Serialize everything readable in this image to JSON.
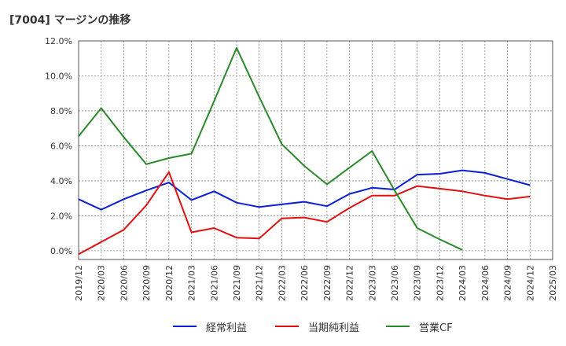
{
  "chart_title": "[7004]  マージンの推移",
  "chart_data": {
    "type": "line",
    "title": "[7004]  マージンの推移",
    "ylim": [
      -0.5,
      12.0
    ],
    "yticks": [
      "12.0%",
      "10.0%",
      "8.0%",
      "6.0%",
      "4.0%",
      "2.0%",
      "0.0%"
    ],
    "ytick_values": [
      12,
      10,
      8,
      6,
      4,
      2,
      0
    ],
    "categories": [
      "2019/12",
      "2020/03",
      "2020/06",
      "2020/09",
      "2020/12",
      "2021/03",
      "2021/06",
      "2021/09",
      "2021/12",
      "2022/03",
      "2022/06",
      "2022/09",
      "2022/12",
      "2023/03",
      "2023/06",
      "2023/09",
      "2023/12",
      "2024/03",
      "2024/06",
      "2024/09",
      "2024/12",
      "2025/03"
    ],
    "grid": true,
    "legend_position": "bottom",
    "series": [
      {
        "name": "経常利益",
        "color": "#0a1fd6",
        "values": [
          2.95,
          2.35,
          2.95,
          3.45,
          3.9,
          2.9,
          3.4,
          2.75,
          2.5,
          2.65,
          2.8,
          2.55,
          3.25,
          3.6,
          3.5,
          4.35,
          4.4,
          4.6,
          4.45,
          4.1,
          3.75,
          null
        ]
      },
      {
        "name": "当期純利益",
        "color": "#e01010",
        "values": [
          -0.2,
          0.5,
          1.2,
          2.6,
          4.5,
          1.05,
          1.3,
          0.75,
          0.7,
          1.85,
          1.9,
          1.65,
          2.45,
          3.15,
          3.15,
          3.7,
          3.55,
          3.4,
          3.15,
          2.95,
          3.1,
          null
        ]
      },
      {
        "name": "営業CF",
        "color": "#2a8a2a",
        "values": [
          6.55,
          8.15,
          6.5,
          4.95,
          5.3,
          5.55,
          8.55,
          11.6,
          8.8,
          6.1,
          4.85,
          3.8,
          4.75,
          5.7,
          3.45,
          1.3,
          0.65,
          0.05,
          null,
          null,
          null,
          null
        ]
      }
    ]
  }
}
